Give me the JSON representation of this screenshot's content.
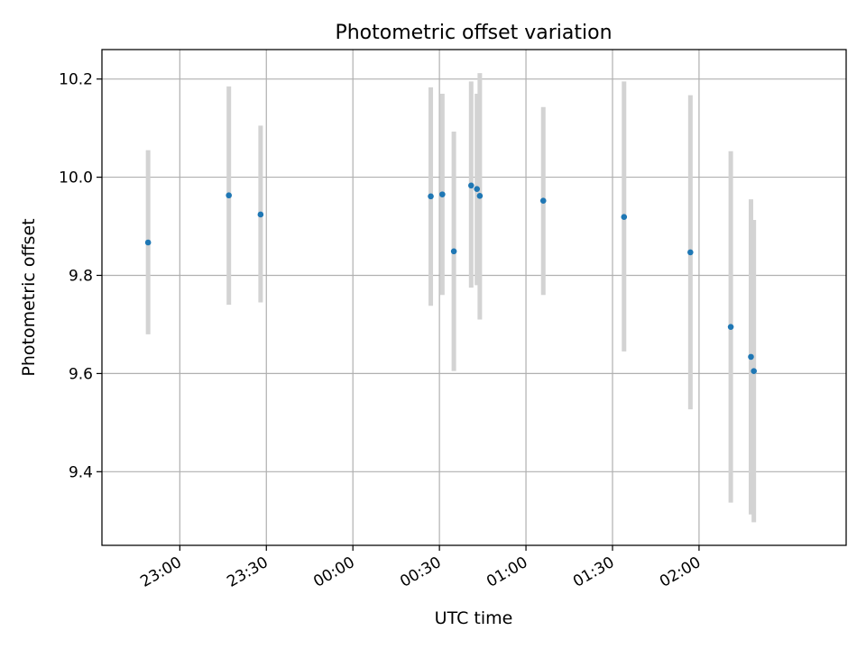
{
  "chart_data": {
    "type": "scatter",
    "title": "Photometric offset variation",
    "xlabel": "UTC time",
    "ylabel": "Photometric offset",
    "x_reference": "22:00",
    "xlim": [
      "22:33",
      "02:51"
    ],
    "ylim": [
      9.25,
      10.26
    ],
    "grid": true,
    "x_ticks": [
      "23:00",
      "23:30",
      "00:00",
      "00:30",
      "01:00",
      "01:30",
      "02:00"
    ],
    "y_ticks": [
      9.4,
      9.6,
      9.8,
      10.0,
      10.2
    ],
    "points": [
      {
        "time": "22:49",
        "y": 9.867,
        "ylow": 9.68,
        "yhigh": 10.055
      },
      {
        "time": "23:17",
        "y": 9.963,
        "ylow": 9.74,
        "yhigh": 10.185
      },
      {
        "time": "23:28",
        "y": 9.924,
        "ylow": 9.745,
        "yhigh": 10.105
      },
      {
        "time": "00:27",
        "y": 9.961,
        "ylow": 9.738,
        "yhigh": 10.183
      },
      {
        "time": "00:31",
        "y": 9.965,
        "ylow": 9.76,
        "yhigh": 10.17
      },
      {
        "time": "00:35",
        "y": 9.849,
        "ylow": 9.605,
        "yhigh": 10.093
      },
      {
        "time": "00:41",
        "y": 9.983,
        "ylow": 9.775,
        "yhigh": 10.195
      },
      {
        "time": "00:43",
        "y": 9.976,
        "ylow": 9.78,
        "yhigh": 10.17
      },
      {
        "time": "00:44",
        "y": 9.962,
        "ylow": 9.71,
        "yhigh": 10.212
      },
      {
        "time": "01:06",
        "y": 9.952,
        "ylow": 9.76,
        "yhigh": 10.143
      },
      {
        "time": "01:34",
        "y": 9.919,
        "ylow": 9.645,
        "yhigh": 10.195
      },
      {
        "time": "01:57",
        "y": 9.847,
        "ylow": 9.527,
        "yhigh": 10.167
      },
      {
        "time": "02:11",
        "y": 9.695,
        "ylow": 9.337,
        "yhigh": 10.053
      },
      {
        "time": "02:18",
        "y": 9.634,
        "ylow": 9.313,
        "yhigh": 9.955
      },
      {
        "time": "02:19",
        "y": 9.605,
        "ylow": 9.297,
        "yhigh": 9.913
      }
    ],
    "colors": {
      "point": "#1f77b4",
      "errorbar": "#d3d3d3",
      "grid": "#b0b0b0",
      "axes": "#000000"
    }
  }
}
